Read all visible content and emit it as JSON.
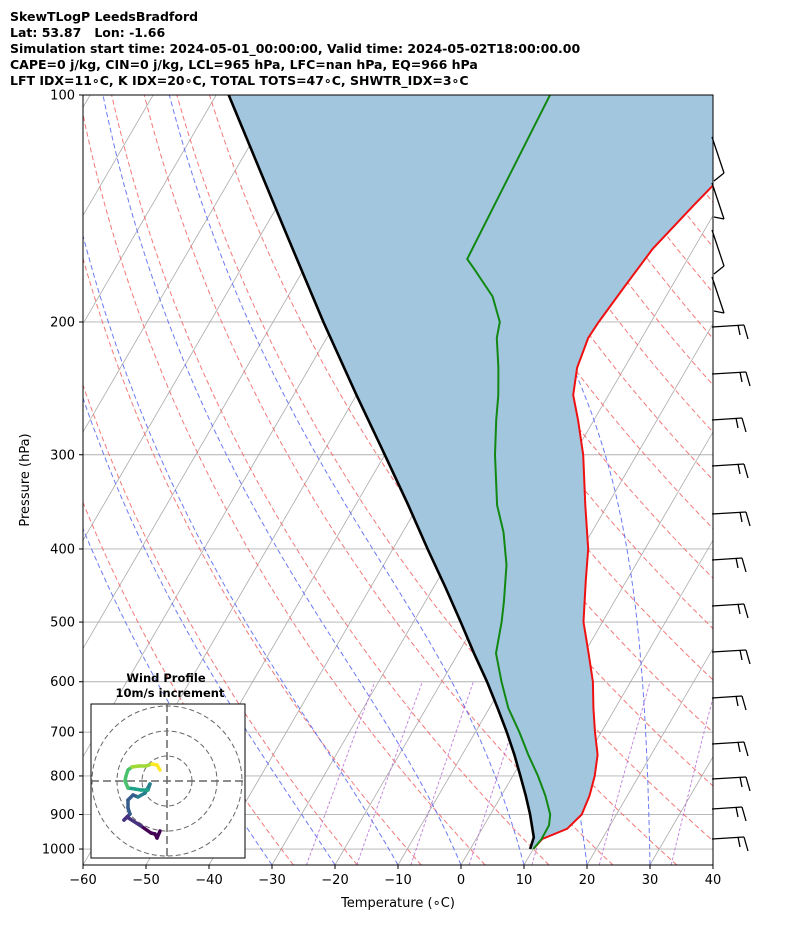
{
  "header": {
    "line1": "SkewTLogP LeedsBradford",
    "line2": "Lat: 53.87   Lon: -1.66",
    "line3": "Simulation start time: 2024-05-01_00:00:00, Valid time: 2024-05-02T18:00:00.00",
    "line4": "CAPE=0 j/kg, CIN=0 j/kg, LCL=965 hPa, LFC=nan hPa, EQ=966 hPa",
    "line5": "LFT IDX=11∘C, K IDX=20∘C, TOTAL TOTS=47∘C, SHWTR_IDX=3∘C"
  },
  "colors": {
    "temperature": "#ee1111",
    "dewpoint": "#118811",
    "parcel": "#000000",
    "cape_fill": "#a3c6df",
    "dry_adiabat": "#f26a6a",
    "moist_adiabat": "#5c6cf2",
    "mixing_ratio": "#b05ed0",
    "isotherm": "#aaaaaa"
  },
  "chart_data": {
    "type": "line",
    "subtype": "skew-T log-p",
    "xlabel": "Temperature (∘C)",
    "ylabel": "Pressure (hPa)",
    "xlim": [
      -60,
      40
    ],
    "ylim": [
      1050,
      100
    ],
    "x_ticks": [
      "−60",
      "−50",
      "−40",
      "−30",
      "−20",
      "−10",
      "0",
      "10",
      "20",
      "30",
      "40"
    ],
    "y_ticks": [
      "100",
      "200",
      "300",
      "400",
      "500",
      "600",
      "700",
      "800",
      "900",
      "1000"
    ],
    "y_tick_values": [
      100,
      200,
      300,
      400,
      500,
      600,
      700,
      800,
      900,
      1000
    ],
    "y_scale": "log",
    "grid": true,
    "series": [
      {
        "key": "temperature",
        "points": [
          [
            1000,
            10
          ],
          [
            970,
            10.5
          ],
          [
            940,
            13.5
          ],
          [
            900,
            14.5
          ],
          [
            850,
            14
          ],
          [
            800,
            13
          ],
          [
            750,
            11.5
          ],
          [
            700,
            9
          ],
          [
            650,
            6.5
          ],
          [
            600,
            4
          ],
          [
            550,
            0.7
          ],
          [
            500,
            -3
          ],
          [
            470,
            -4.7
          ],
          [
            440,
            -6.5
          ],
          [
            400,
            -9
          ],
          [
            350,
            -13.5
          ],
          [
            300,
            -18.5
          ],
          [
            270,
            -22.5
          ],
          [
            250,
            -25.6
          ],
          [
            230,
            -27.5
          ],
          [
            210,
            -28.5
          ],
          [
            200,
            -28.3
          ],
          [
            180,
            -27.5
          ],
          [
            160,
            -26.5
          ],
          [
            140,
            -24
          ],
          [
            130,
            -22.5
          ],
          [
            120,
            -21
          ],
          [
            110,
            -20
          ],
          [
            100,
            -19.5
          ]
        ]
      },
      {
        "key": "dewpoint",
        "points": [
          [
            1000,
            10
          ],
          [
            970,
            10.4
          ],
          [
            930,
            10.3
          ],
          [
            900,
            9.5
          ],
          [
            850,
            7
          ],
          [
            800,
            4
          ],
          [
            750,
            0.5
          ],
          [
            700,
            -3
          ],
          [
            650,
            -7
          ],
          [
            600,
            -10.5
          ],
          [
            550,
            -14
          ],
          [
            500,
            -16
          ],
          [
            470,
            -17.5
          ],
          [
            420,
            -20.5
          ],
          [
            380,
            -24
          ],
          [
            350,
            -27.5
          ],
          [
            300,
            -32.5
          ],
          [
            270,
            -35.5
          ],
          [
            250,
            -37.5
          ],
          [
            230,
            -40
          ],
          [
            210,
            -43
          ],
          [
            200,
            -44
          ],
          [
            185,
            -47.5
          ],
          [
            170,
            -53
          ],
          [
            165,
            -55
          ],
          [
            100,
            -57
          ]
        ]
      },
      {
        "key": "parcel",
        "points": [
          [
            1000,
            9.5
          ],
          [
            965,
            9.0
          ],
          [
            900,
            6.3
          ],
          [
            850,
            3.9
          ],
          [
            800,
            1.2
          ],
          [
            750,
            -1.7
          ],
          [
            700,
            -5.0
          ],
          [
            650,
            -8.7
          ],
          [
            600,
            -12.8
          ],
          [
            550,
            -17.5
          ],
          [
            500,
            -22.5
          ],
          [
            450,
            -28.1
          ],
          [
            400,
            -34.5
          ],
          [
            350,
            -41.6
          ],
          [
            300,
            -50
          ],
          [
            250,
            -60
          ],
          [
            200,
            -72
          ],
          [
            150,
            -87
          ],
          [
            100,
            -108
          ]
        ]
      }
    ],
    "inset": {
      "title": "Wind Profile",
      "subtitle": "10m/s increment"
    }
  }
}
